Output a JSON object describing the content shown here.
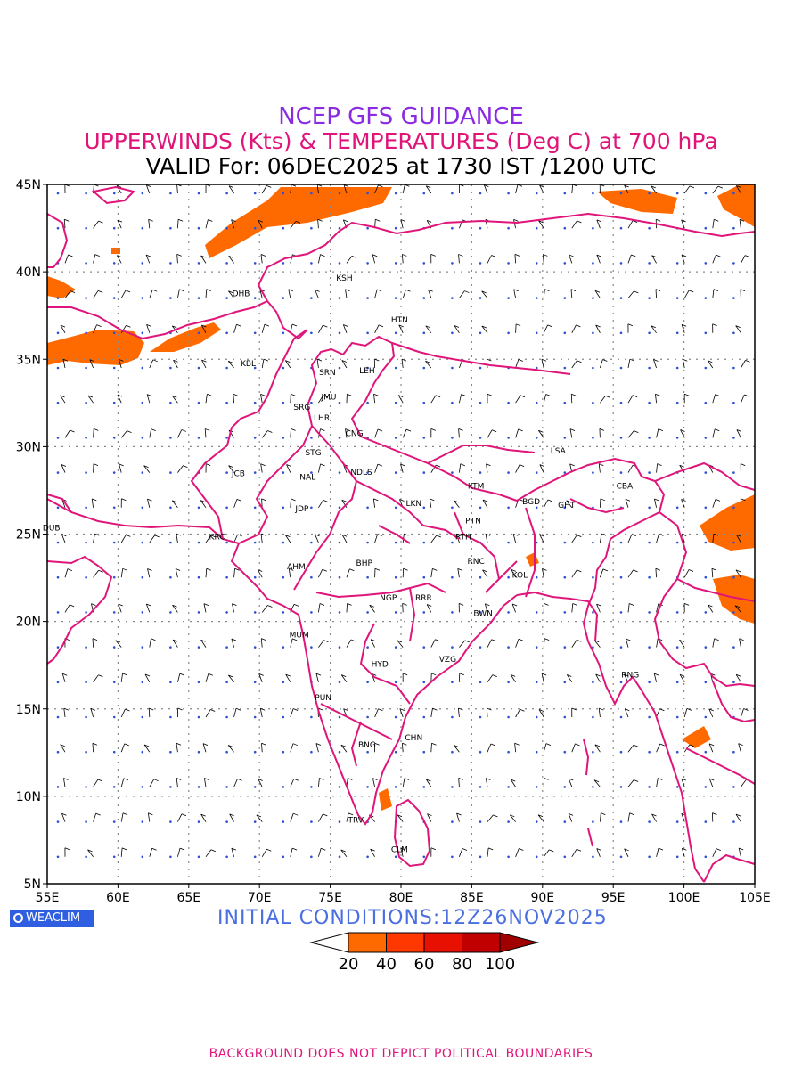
{
  "header": {
    "line1": "NCEP GFS GUIDANCE",
    "line2": "UPPERWINDS (Kts) & TEMPERATURES (Deg C) at 700 hPa",
    "line3": "VALID For: 06DEC2025 at 1730 IST /1200 UTC"
  },
  "map": {
    "lon_range": [
      55,
      105
    ],
    "lat_range": [
      5,
      45
    ],
    "lon_ticks": [
      "55E",
      "60E",
      "65E",
      "70E",
      "75E",
      "80E",
      "85E",
      "90E",
      "95E",
      "100E",
      "105E"
    ],
    "lat_ticks": [
      "45N",
      "40N",
      "35N",
      "30N",
      "25N",
      "20N",
      "15N",
      "10N",
      "5N"
    ],
    "grid": true,
    "colors": {
      "boundary": "#e0157a",
      "grid": "#888888",
      "temperature_label": "#2d4fd6",
      "wind_barb": "#000000"
    },
    "stations": [
      {
        "code": "KSH",
        "lon": 76.0,
        "lat": 39.5
      },
      {
        "code": "DHB",
        "lon": 68.7,
        "lat": 38.6
      },
      {
        "code": "HTN",
        "lon": 79.9,
        "lat": 37.1
      },
      {
        "code": "KBL",
        "lon": 69.2,
        "lat": 34.6
      },
      {
        "code": "SRN",
        "lon": 74.8,
        "lat": 34.1
      },
      {
        "code": "LEH",
        "lon": 77.6,
        "lat": 34.2
      },
      {
        "code": "JMU",
        "lon": 74.9,
        "lat": 32.7
      },
      {
        "code": "SRG",
        "lon": 73.0,
        "lat": 32.1
      },
      {
        "code": "LHR",
        "lon": 74.4,
        "lat": 31.5
      },
      {
        "code": "CNG",
        "lon": 76.7,
        "lat": 30.6
      },
      {
        "code": "STG",
        "lon": 73.8,
        "lat": 29.5
      },
      {
        "code": "LSA",
        "lon": 91.1,
        "lat": 29.6
      },
      {
        "code": "JCB",
        "lon": 68.5,
        "lat": 28.3
      },
      {
        "code": "NAL",
        "lon": 73.4,
        "lat": 28.1
      },
      {
        "code": "NDLS",
        "lon": 77.2,
        "lat": 28.4
      },
      {
        "code": "KTM",
        "lon": 85.3,
        "lat": 27.6
      },
      {
        "code": "CBA",
        "lon": 95.8,
        "lat": 27.6
      },
      {
        "code": "BGD",
        "lon": 89.2,
        "lat": 26.7
      },
      {
        "code": "GHT",
        "lon": 91.7,
        "lat": 26.5
      },
      {
        "code": "LKN",
        "lon": 80.9,
        "lat": 26.6
      },
      {
        "code": "JDP",
        "lon": 73.0,
        "lat": 26.3
      },
      {
        "code": "PTN",
        "lon": 85.1,
        "lat": 25.6
      },
      {
        "code": "DUB",
        "lon": 55.3,
        "lat": 25.2
      },
      {
        "code": "RTH",
        "lon": 84.4,
        "lat": 24.7
      },
      {
        "code": "KRC",
        "lon": 67.0,
        "lat": 24.7
      },
      {
        "code": "BHP",
        "lon": 77.4,
        "lat": 23.2
      },
      {
        "code": "AHM",
        "lon": 72.6,
        "lat": 23.0
      },
      {
        "code": "RNC",
        "lon": 85.3,
        "lat": 23.3
      },
      {
        "code": "KOL",
        "lon": 88.4,
        "lat": 22.5
      },
      {
        "code": "NGP",
        "lon": 79.1,
        "lat": 21.2
      },
      {
        "code": "RRR",
        "lon": 81.6,
        "lat": 21.2
      },
      {
        "code": "BWN",
        "lon": 85.8,
        "lat": 20.3
      },
      {
        "code": "MUM",
        "lon": 72.8,
        "lat": 19.1
      },
      {
        "code": "HYD",
        "lon": 78.5,
        "lat": 17.4
      },
      {
        "code": "VZG",
        "lon": 83.3,
        "lat": 17.7
      },
      {
        "code": "RNG",
        "lon": 96.2,
        "lat": 16.8
      },
      {
        "code": "PUN",
        "lon": 74.5,
        "lat": 15.5
      },
      {
        "code": "CHN",
        "lon": 80.9,
        "lat": 13.2
      },
      {
        "code": "BNG",
        "lon": 77.6,
        "lat": 12.8
      },
      {
        "code": "TRV",
        "lon": 76.8,
        "lat": 8.5
      },
      {
        "code": "CLM",
        "lon": 79.9,
        "lat": 6.8
      }
    ]
  },
  "badge": {
    "label": "WEACLIM"
  },
  "initial_conditions": "INITIAL  CONDITIONS:12Z26NOV2025",
  "colorbar": {
    "labels": [
      "20",
      "40",
      "60",
      "80",
      "100"
    ],
    "colors": [
      "#ff6a00",
      "#ff3800",
      "#e81000",
      "#c00000",
      "#a00000"
    ]
  },
  "footer": "BACKGROUND DOES NOT DEPICT POLITICAL BOUNDARIES"
}
